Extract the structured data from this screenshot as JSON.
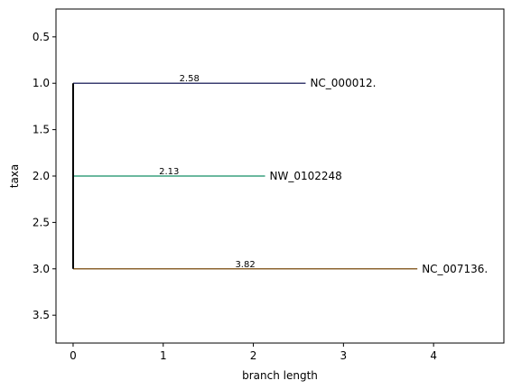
{
  "chart_data": {
    "type": "tree",
    "xlabel": "branch length",
    "ylabel": "taxa",
    "xlim": [
      -0.19,
      4.78
    ],
    "ylim": [
      3.8,
      0.2
    ],
    "xticks": [
      0,
      1,
      2,
      3,
      4
    ],
    "yticks": [
      0.5,
      1.0,
      1.5,
      2.0,
      2.5,
      3.0,
      3.5
    ],
    "xtick_labels": [
      "0",
      "1",
      "2",
      "3",
      "4"
    ],
    "ytick_labels": [
      "0.5",
      "1.0",
      "1.5",
      "2.0",
      "2.5",
      "3.0",
      "3.5"
    ],
    "grid": false,
    "root": {
      "x": 0,
      "y_from": 1.0,
      "y_to": 3.0,
      "color": "#000000"
    },
    "branches": [
      {
        "label": "NC_000012.",
        "y": 1.0,
        "length": 2.58,
        "length_label": "2.58",
        "color": "#3b3f72"
      },
      {
        "label": "NW_0102248",
        "y": 2.0,
        "length": 2.13,
        "length_label": "2.13",
        "color": "#3aa07f"
      },
      {
        "label": "NC_007136.",
        "y": 3.0,
        "length": 3.82,
        "length_label": "3.82",
        "color": "#8c6430"
      }
    ]
  }
}
